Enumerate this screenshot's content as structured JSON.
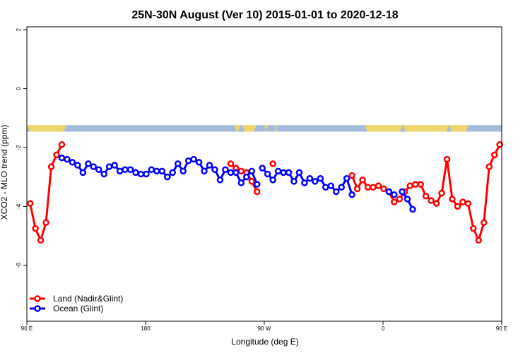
{
  "chart_data": {
    "type": "line",
    "title": "25N-30N August (Ver 10)   2015-01-01 to 2020-12-18",
    "xlabel": "Longitude (deg E)",
    "ylabel": "XCO2 - MLO trend (ppm)",
    "xlim": [
      90,
      450
    ],
    "ylim": [
      -7.9,
      2.1
    ],
    "x_ticks": [
      {
        "value": 90,
        "label": "90 E"
      },
      {
        "value": 180,
        "label": "180"
      },
      {
        "value": 270,
        "label": "90 W"
      },
      {
        "value": 360,
        "label": "0"
      },
      {
        "value": 450,
        "label": "90 E"
      },
      {
        "value": 540,
        "label": "180"
      }
    ],
    "y_ticks": [
      {
        "value": 2,
        "label": "2"
      },
      {
        "value": 0,
        "label": "0"
      },
      {
        "value": -2,
        "label": "-2"
      },
      {
        "value": -4,
        "label": "-4"
      },
      {
        "value": -6,
        "label": "-6"
      }
    ],
    "legend_position": "bottom-left",
    "grid": false,
    "surface_strip": {
      "ymin": -1.46,
      "ymax": -1.24,
      "ocean_color": "#a4bcdc",
      "land_color": "#f0d46c",
      "land_ranges": [
        [
          90,
          120
        ],
        [
          247,
          252
        ],
        [
          253,
          264
        ],
        [
          270,
          273
        ],
        [
          278,
          279
        ],
        [
          279,
          280
        ],
        [
          346,
          375
        ],
        [
          375,
          410
        ],
        [
          410,
          425
        ]
      ]
    },
    "series": [
      {
        "name": "Land (Nadir&Glint)",
        "color": "#ff0000",
        "segments": [
          [
            [
              92.5,
              -3.9
            ],
            [
              96.5,
              -4.75
            ],
            [
              100.5,
              -5.15
            ],
            [
              104.5,
              -4.55
            ],
            [
              108.5,
              -2.65
            ],
            [
              112.5,
              -2.25
            ],
            [
              116.5,
              -1.9
            ]
          ],
          [
            [
              244.5,
              -2.55
            ],
            [
              248.5,
              -2.7
            ],
            [
              252.5,
              -2.8
            ],
            [
              256.5,
              -2.85
            ],
            [
              260.5,
              -3.15
            ],
            [
              264.5,
              -3.5
            ]
          ],
          [
            [
              276.5,
              -2.55
            ]
          ],
          [
            [
              336.5,
              -2.95
            ],
            [
              340.5,
              -3.4
            ],
            [
              344.5,
              -3.1
            ],
            [
              348.5,
              -3.35
            ],
            [
              352.5,
              -3.35
            ],
            [
              356.5,
              -3.3
            ],
            [
              360.5,
              -3.4
            ],
            [
              364.5,
              -3.5
            ],
            [
              368.5,
              -3.85
            ],
            [
              372.5,
              -3.75
            ],
            [
              376.5,
              -3.5
            ],
            [
              380.5,
              -3.3
            ],
            [
              384.5,
              -3.25
            ],
            [
              388.5,
              -3.25
            ],
            [
              392.5,
              -3.65
            ],
            [
              396.5,
              -3.8
            ],
            [
              400.5,
              -3.9
            ],
            [
              404.5,
              -3.55
            ],
            [
              408.5,
              -2.4
            ],
            [
              412.5,
              -3.75
            ],
            [
              416.5,
              -4.0
            ],
            [
              420.5,
              -3.85
            ],
            [
              424.5,
              -3.9
            ],
            [
              428.5,
              -4.75
            ],
            [
              432.5,
              -5.15
            ],
            [
              436.5,
              -4.55
            ],
            [
              440.5,
              -2.65
            ],
            [
              444.5,
              -2.25
            ],
            [
              448.5,
              -1.9
            ]
          ]
        ]
      },
      {
        "name": "Ocean (Glint)",
        "color": "#0000ff",
        "segments": [
          [
            [
              116.5,
              -2.35
            ],
            [
              120.5,
              -2.4
            ],
            [
              124.5,
              -2.5
            ],
            [
              128.5,
              -2.6
            ],
            [
              132.5,
              -2.85
            ],
            [
              136.5,
              -2.55
            ],
            [
              140.5,
              -2.65
            ],
            [
              144.5,
              -2.75
            ],
            [
              148.5,
              -2.9
            ],
            [
              152.5,
              -2.65
            ],
            [
              156.5,
              -2.6
            ],
            [
              160.5,
              -2.8
            ],
            [
              164.5,
              -2.75
            ],
            [
              168.5,
              -2.75
            ],
            [
              172.5,
              -2.85
            ],
            [
              176.5,
              -2.9
            ],
            [
              180.5,
              -2.9
            ],
            [
              184.5,
              -2.75
            ],
            [
              188.5,
              -2.8
            ],
            [
              192.5,
              -2.8
            ],
            [
              196.5,
              -3.0
            ],
            [
              200.5,
              -2.85
            ],
            [
              204.5,
              -2.55
            ],
            [
              208.5,
              -2.8
            ],
            [
              212.5,
              -2.45
            ],
            [
              216.5,
              -2.4
            ],
            [
              220.5,
              -2.5
            ],
            [
              224.5,
              -2.8
            ],
            [
              228.5,
              -2.6
            ],
            [
              232.5,
              -2.75
            ],
            [
              236.5,
              -3.1
            ],
            [
              240.5,
              -2.75
            ],
            [
              244.5,
              -2.85
            ],
            [
              248.5,
              -2.85
            ],
            [
              252.5,
              -3.2
            ],
            [
              256.5,
              -3.0
            ],
            [
              260.5,
              -2.8
            ],
            [
              264.5,
              -3.25
            ]
          ],
          [
            [
              268.5,
              -2.7
            ],
            [
              272.5,
              -2.9
            ],
            [
              276.5,
              -3.1
            ],
            [
              280.5,
              -2.8
            ],
            [
              284.5,
              -2.85
            ],
            [
              288.5,
              -2.85
            ],
            [
              292.5,
              -3.15
            ],
            [
              296.5,
              -2.85
            ],
            [
              300.5,
              -3.2
            ],
            [
              304.5,
              -3.05
            ],
            [
              308.5,
              -3.15
            ],
            [
              312.5,
              -3.05
            ],
            [
              316.5,
              -3.35
            ],
            [
              320.5,
              -3.3
            ],
            [
              324.5,
              -3.5
            ],
            [
              328.5,
              -3.35
            ],
            [
              332.5,
              -3.05
            ],
            [
              336.5,
              -3.6
            ]
          ],
          [
            [
              364.5,
              -3.5
            ],
            [
              368.5,
              -3.6
            ]
          ],
          [
            [
              374.5,
              -3.5
            ],
            [
              378.5,
              -3.75
            ],
            [
              382.5,
              -4.1
            ]
          ]
        ]
      }
    ]
  }
}
